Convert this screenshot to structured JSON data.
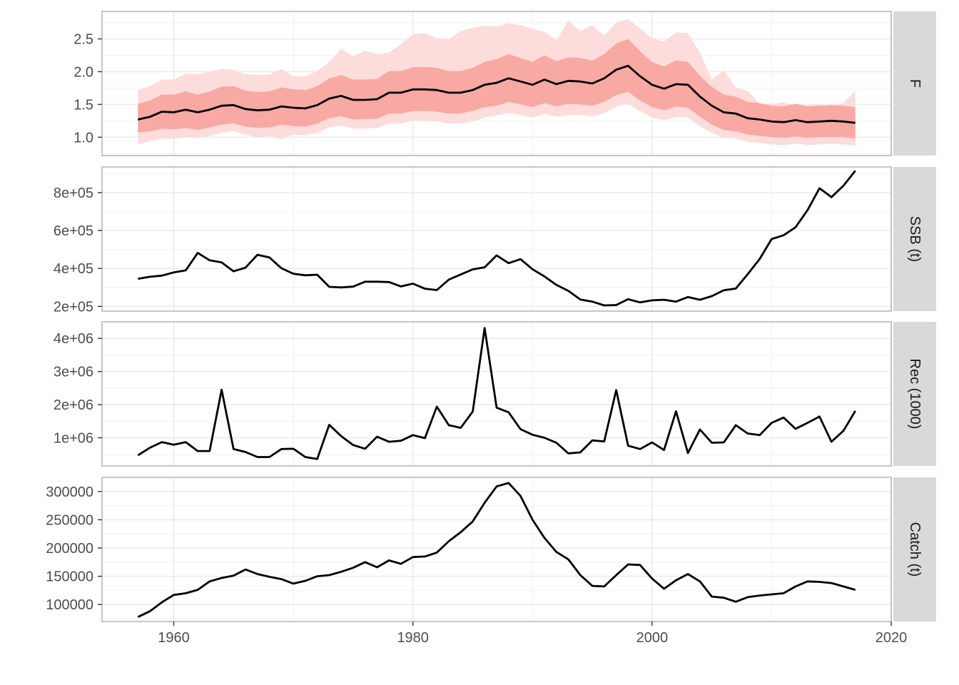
{
  "chart_data": {
    "type": "line",
    "layout": "faceted-vertical",
    "x_axis": {
      "range": [
        1954,
        2020
      ],
      "ticks": [
        1960,
        1980,
        2000,
        2020
      ],
      "tick_labels": [
        "1960",
        "1980",
        "2000",
        "2020"
      ]
    },
    "years": [
      1957,
      1958,
      1959,
      1960,
      1961,
      1962,
      1963,
      1964,
      1965,
      1966,
      1967,
      1968,
      1969,
      1970,
      1971,
      1972,
      1973,
      1974,
      1975,
      1976,
      1977,
      1978,
      1979,
      1980,
      1981,
      1982,
      1983,
      1984,
      1985,
      1986,
      1987,
      1988,
      1989,
      1990,
      1991,
      1992,
      1993,
      1994,
      1995,
      1996,
      1997,
      1998,
      1999,
      2000,
      2001,
      2002,
      2003,
      2004,
      2005,
      2006,
      2007,
      2008,
      2009,
      2010,
      2011,
      2012,
      2013,
      2014,
      2015,
      2016,
      2017
    ],
    "colors": {
      "line": "#000000",
      "inner_band": "#f8a9a4",
      "outer_band": "#fddcdc",
      "strip_bg": "#d9d9d9",
      "grid": "#ebebeb",
      "border": "#b3b3b3"
    },
    "panels": [
      {
        "strip": "F",
        "ylim": [
          0.72,
          2.92
        ],
        "y_ticks": [
          1.0,
          1.5,
          2.0,
          2.5
        ],
        "y_tick_labels": [
          "1.0",
          "1.5",
          "2.0",
          "2.5"
        ],
        "values": [
          1.27,
          1.31,
          1.39,
          1.38,
          1.42,
          1.38,
          1.42,
          1.48,
          1.49,
          1.43,
          1.41,
          1.42,
          1.47,
          1.45,
          1.44,
          1.49,
          1.59,
          1.63,
          1.57,
          1.57,
          1.58,
          1.68,
          1.68,
          1.73,
          1.73,
          1.72,
          1.68,
          1.68,
          1.72,
          1.8,
          1.83,
          1.9,
          1.85,
          1.8,
          1.88,
          1.81,
          1.86,
          1.85,
          1.82,
          1.9,
          2.03,
          2.09,
          1.93,
          1.8,
          1.74,
          1.81,
          1.8,
          1.62,
          1.48,
          1.38,
          1.36,
          1.29,
          1.27,
          1.24,
          1.23,
          1.26,
          1.23,
          1.24,
          1.25,
          1.24,
          1.22
        ],
        "inner_band": {
          "lower": [
            1.07,
            1.09,
            1.13,
            1.12,
            1.14,
            1.11,
            1.15,
            1.19,
            1.21,
            1.16,
            1.14,
            1.15,
            1.19,
            1.17,
            1.16,
            1.21,
            1.29,
            1.32,
            1.27,
            1.28,
            1.28,
            1.36,
            1.36,
            1.4,
            1.4,
            1.39,
            1.36,
            1.36,
            1.4,
            1.46,
            1.48,
            1.54,
            1.5,
            1.46,
            1.52,
            1.47,
            1.51,
            1.5,
            1.48,
            1.54,
            1.64,
            1.69,
            1.56,
            1.46,
            1.41,
            1.47,
            1.45,
            1.31,
            1.19,
            1.11,
            1.09,
            1.04,
            1.02,
            1.0,
            0.99,
            1.01,
            0.99,
            1.0,
            1.0,
            1.0,
            0.98
          ],
          "upper": [
            1.51,
            1.56,
            1.65,
            1.65,
            1.7,
            1.65,
            1.7,
            1.77,
            1.78,
            1.71,
            1.69,
            1.7,
            1.76,
            1.73,
            1.72,
            1.78,
            1.9,
            1.95,
            1.88,
            1.88,
            1.89,
            2.01,
            2.01,
            2.07,
            2.07,
            2.06,
            2.01,
            2.01,
            2.06,
            2.15,
            2.19,
            2.27,
            2.21,
            2.15,
            2.25,
            2.16,
            2.22,
            2.21,
            2.17,
            2.27,
            2.43,
            2.5,
            2.31,
            2.15,
            2.08,
            2.17,
            2.15,
            1.94,
            1.77,
            1.65,
            1.62,
            1.54,
            1.52,
            1.48,
            1.47,
            1.51,
            1.47,
            1.48,
            1.49,
            1.48,
            1.46
          ]
        },
        "outer_band": {
          "lower": [
            0.89,
            0.94,
            0.98,
            0.97,
            1.01,
            0.99,
            1.02,
            1.07,
            1.09,
            1.04,
            1.0,
            1.02,
            0.97,
            1.04,
            1.03,
            1.07,
            1.15,
            1.18,
            1.13,
            1.13,
            1.14,
            1.21,
            1.21,
            1.25,
            1.25,
            1.24,
            1.21,
            1.21,
            1.24,
            1.3,
            1.33,
            1.37,
            1.34,
            1.3,
            1.36,
            1.31,
            1.34,
            1.34,
            1.32,
            1.37,
            1.47,
            1.51,
            1.4,
            1.3,
            1.26,
            1.31,
            1.3,
            1.17,
            1.07,
            0.99,
            0.98,
            0.93,
            0.91,
            0.89,
            0.88,
            0.9,
            0.88,
            0.89,
            0.9,
            0.89,
            0.87
          ],
          "upper": [
            1.72,
            1.78,
            1.88,
            1.88,
            1.97,
            1.96,
            2.0,
            2.04,
            2.03,
            1.96,
            1.95,
            1.96,
            2.04,
            1.93,
            1.93,
            2.01,
            2.15,
            2.35,
            2.23,
            2.32,
            2.27,
            2.29,
            2.42,
            2.57,
            2.59,
            2.51,
            2.5,
            2.62,
            2.67,
            2.7,
            2.69,
            2.74,
            2.71,
            2.65,
            2.61,
            2.48,
            2.78,
            2.62,
            2.71,
            2.55,
            2.75,
            2.8,
            2.66,
            2.51,
            2.46,
            2.6,
            2.59,
            2.29,
            1.88,
            2.02,
            1.76,
            1.71,
            1.51,
            1.51,
            1.53,
            1.48,
            1.49,
            1.5,
            1.46,
            1.52,
            1.71
          ]
        }
      },
      {
        "strip": "SSB (t)",
        "ylim": [
          175000,
          935000
        ],
        "y_ticks": [
          200000,
          400000,
          600000,
          800000
        ],
        "y_tick_labels": [
          "2e+05",
          "4e+05",
          "6e+05",
          "8e+05"
        ],
        "values": [
          345000,
          356000,
          362000,
          379000,
          390000,
          482000,
          443000,
          432000,
          385000,
          404000,
          472000,
          458000,
          401000,
          372000,
          364000,
          367000,
          303000,
          300000,
          304000,
          330000,
          330000,
          328000,
          305000,
          320000,
          293000,
          286000,
          341000,
          368000,
          395000,
          406000,
          469000,
          428000,
          449000,
          396000,
          358000,
          313000,
          282000,
          236000,
          225000,
          205000,
          207000,
          238000,
          221000,
          232000,
          235000,
          225000,
          249000,
          235000,
          254000,
          285000,
          294000,
          370000,
          450000,
          555000,
          575000,
          617000,
          707000,
          823000,
          776000,
          836000,
          915000
        ]
      },
      {
        "strip": "Rec (1000)",
        "ylim": [
          150000,
          4500000
        ],
        "y_ticks": [
          1000000,
          2000000,
          3000000,
          4000000
        ],
        "y_tick_labels": [
          "1e+06",
          "2e+06",
          "3e+06",
          "4e+06"
        ],
        "values": [
          470000,
          700000,
          870000,
          790000,
          870000,
          600000,
          600000,
          2450000,
          660000,
          570000,
          420000,
          420000,
          660000,
          670000,
          420000,
          360000,
          1390000,
          1050000,
          780000,
          670000,
          1030000,
          880000,
          910000,
          1080000,
          990000,
          1940000,
          1380000,
          1300000,
          1790000,
          4310000,
          1910000,
          1770000,
          1260000,
          1090000,
          1000000,
          850000,
          530000,
          560000,
          920000,
          890000,
          2440000,
          760000,
          660000,
          860000,
          630000,
          1800000,
          540000,
          1250000,
          850000,
          860000,
          1380000,
          1130000,
          1080000,
          1450000,
          1610000,
          1270000,
          1450000,
          1640000,
          880000,
          1210000,
          1810000
        ]
      },
      {
        "strip": "Catch (t)",
        "ylim": [
          70000,
          325000
        ],
        "y_ticks": [
          100000,
          150000,
          200000,
          250000,
          300000
        ],
        "y_tick_labels": [
          "100000",
          "150000",
          "200000",
          "250000",
          "300000"
        ],
        "values": [
          78000,
          88000,
          104000,
          117000,
          120000,
          126000,
          141000,
          147000,
          151000,
          162000,
          154000,
          149000,
          145000,
          137000,
          142000,
          150000,
          152000,
          158000,
          165000,
          175000,
          166000,
          178000,
          172000,
          184000,
          185000,
          192000,
          212000,
          228000,
          247000,
          280000,
          309000,
          315000,
          292000,
          250000,
          218000,
          193000,
          180000,
          152000,
          133000,
          132000,
          152000,
          171000,
          170000,
          146000,
          128000,
          143000,
          154000,
          141000,
          114000,
          112000,
          105000,
          113000,
          116000,
          118000,
          120000,
          132000,
          141000,
          140000,
          138000,
          132000,
          126000
        ]
      }
    ]
  }
}
